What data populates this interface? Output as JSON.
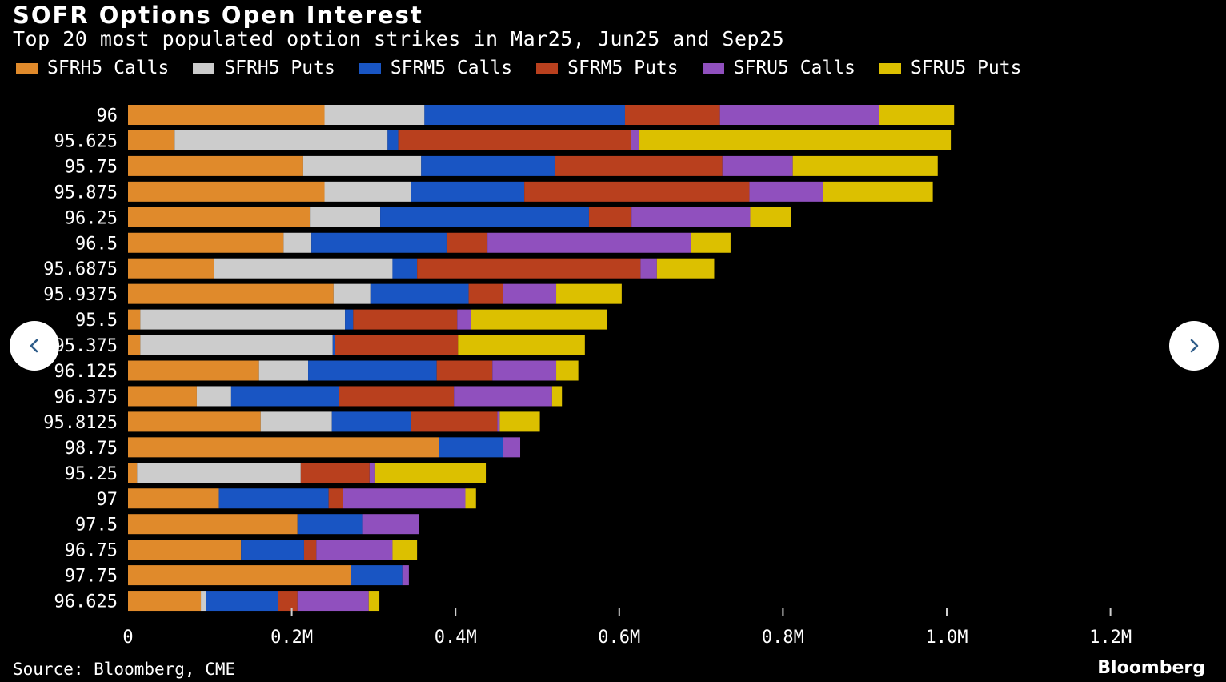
{
  "colors": {
    "background": "#000000",
    "text": "#ffffff",
    "tick": "#cfcfcf",
    "nav_button": "#ffffff",
    "nav_arrow": "#2f5d8a"
  },
  "nav": {
    "prev_icon": "chevron-left-icon",
    "next_icon": "chevron-right-icon"
  },
  "source": "Source: Bloomberg, CME",
  "brand": "Bloomberg",
  "chart_data": {
    "type": "bar",
    "orientation": "horizontal",
    "stacked": true,
    "title": "SOFR Options Open Interest",
    "subtitle": "Top 20 most populated option strikes in Mar25, Jun25 and Sep25",
    "legend_position": "top-left",
    "grid": false,
    "xlim": [
      0,
      1300000
    ],
    "x_ticks": [
      0,
      200000,
      400000,
      600000,
      800000,
      1000000,
      1200000
    ],
    "x_tick_labels": [
      "0",
      "0.2M",
      "0.4M",
      "0.6M",
      "0.8M",
      "1.0M",
      "1.2M"
    ],
    "categories": [
      "96",
      "95.625",
      "95.75",
      "95.875",
      "96.25",
      "96.5",
      "95.6875",
      "95.9375",
      "95.5",
      "95.375",
      "96.125",
      "96.375",
      "95.8125",
      "98.75",
      "95.25",
      "97",
      "97.5",
      "96.75",
      "97.75",
      "96.625"
    ],
    "series": [
      {
        "name": "SFRH5 Calls",
        "color": "#e08a2b",
        "values": [
          240000,
          57000,
          214000,
          240000,
          222000,
          190000,
          105000,
          251000,
          15000,
          15000,
          160000,
          84000,
          162000,
          380000,
          11000,
          111000,
          207000,
          138000,
          272000,
          89000
        ]
      },
      {
        "name": "SFRH5 Puts",
        "color": "#cccccc",
        "values": [
          122000,
          260000,
          144000,
          106000,
          86000,
          34000,
          218000,
          45000,
          250000,
          235000,
          60000,
          42000,
          87000,
          0,
          200000,
          0,
          0,
          0,
          0,
          6000
        ]
      },
      {
        "name": "SFRM5 Calls",
        "color": "#1955c3",
        "values": [
          245000,
          13000,
          163000,
          138000,
          255000,
          165000,
          30000,
          120000,
          10000,
          3000,
          157000,
          132000,
          97000,
          78000,
          0,
          134000,
          79000,
          77000,
          63000,
          88000
        ]
      },
      {
        "name": "SFRM5 Puts",
        "color": "#b9401e",
        "values": [
          116000,
          284000,
          205000,
          275000,
          52000,
          50000,
          273000,
          42000,
          127000,
          150000,
          68000,
          140000,
          105000,
          0,
          84000,
          17000,
          0,
          15000,
          0,
          24000
        ]
      },
      {
        "name": "SFRU5 Calls",
        "color": "#9050be",
        "values": [
          194000,
          10000,
          86000,
          90000,
          145000,
          249000,
          20000,
          65000,
          17000,
          0,
          78000,
          120000,
          3000,
          21000,
          6000,
          150000,
          69000,
          93000,
          8000,
          87000
        ]
      },
      {
        "name": "SFRU5 Puts",
        "color": "#dcc000",
        "values": [
          92000,
          381000,
          177000,
          134000,
          50000,
          48000,
          70000,
          80000,
          166000,
          155000,
          27000,
          12000,
          49000,
          0,
          136000,
          13000,
          0,
          30000,
          0,
          13000
        ]
      }
    ]
  }
}
